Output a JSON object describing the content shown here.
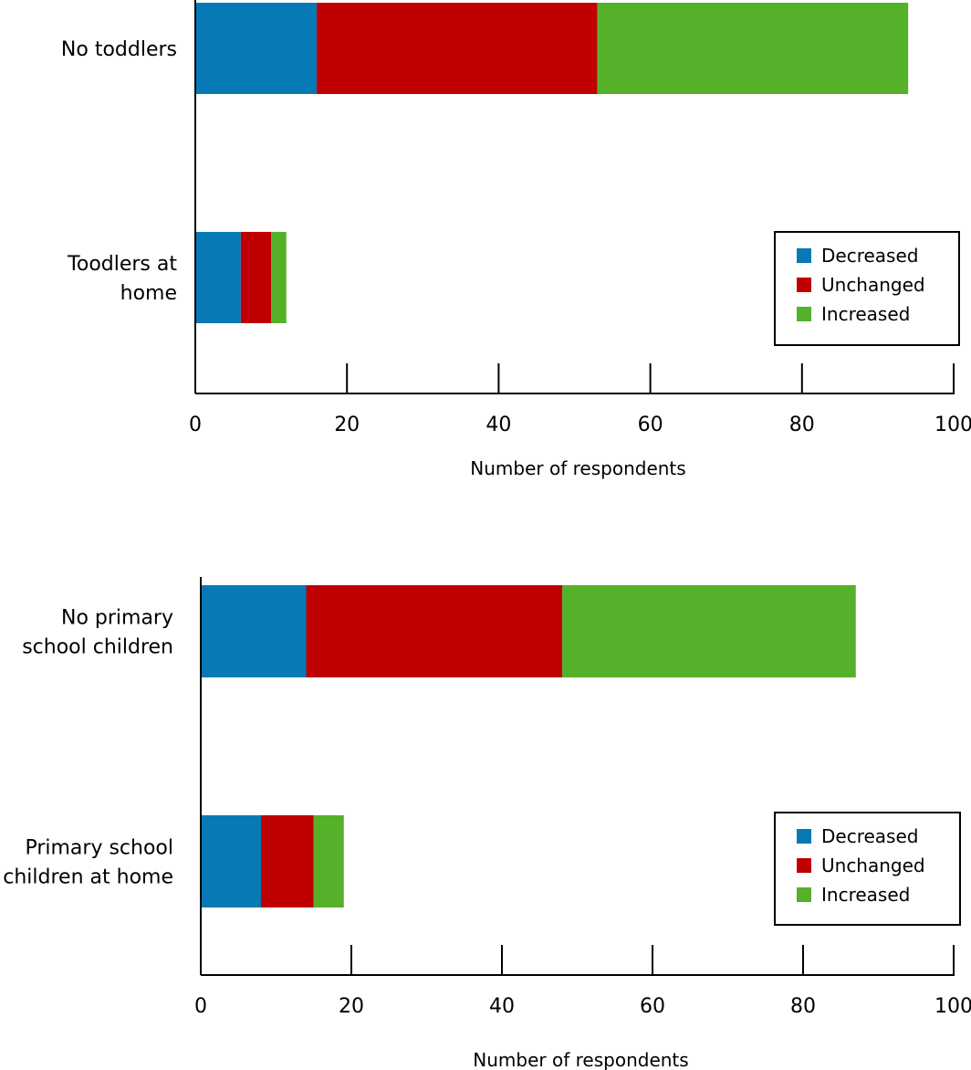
{
  "chart_data": [
    {
      "type": "bar",
      "orientation": "horizontal",
      "stacked": true,
      "categories": [
        "No toddlers",
        "Toodlers at home"
      ],
      "series": [
        {
          "name": "Decreased",
          "values": [
            16,
            6
          ],
          "color": "#0779b4"
        },
        {
          "name": "Unchanged",
          "values": [
            37,
            4
          ],
          "color": "#c00000"
        },
        {
          "name": "Increased",
          "values": [
            41,
            2
          ],
          "color": "#55b02a"
        }
      ],
      "xlabel": "Number of respondents",
      "ylabel": "",
      "xlim": [
        0,
        100
      ],
      "xticks": [
        "0",
        "20",
        "40",
        "60",
        "80",
        "100"
      ],
      "grid": false,
      "legend": "right"
    },
    {
      "type": "bar",
      "orientation": "horizontal",
      "stacked": true,
      "categories": [
        "No primary school children",
        "Primary school children at home"
      ],
      "category_lines": [
        [
          "No primary",
          "school children"
        ],
        [
          "Primary school",
          "children at home"
        ]
      ],
      "series": [
        {
          "name": "Decreased",
          "values": [
            14,
            8
          ],
          "color": "#0779b4"
        },
        {
          "name": "Unchanged",
          "values": [
            34,
            7
          ],
          "color": "#c00000"
        },
        {
          "name": "Increased",
          "values": [
            39,
            4
          ],
          "color": "#55b02a"
        }
      ],
      "xlabel": "Number of respondents",
      "ylabel": "",
      "xlim": [
        0,
        100
      ],
      "xticks": [
        "0",
        "20",
        "40",
        "60",
        "80",
        "100"
      ],
      "grid": false,
      "legend": "right"
    }
  ],
  "charts_labels": {
    "top_categories": [
      [
        "No toddlers"
      ],
      [
        "Toodlers at",
        "home"
      ]
    ]
  }
}
